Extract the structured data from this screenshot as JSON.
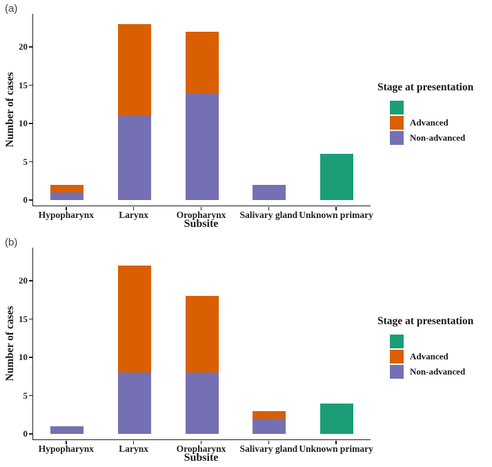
{
  "chart_data": [
    {
      "type": "bar",
      "stacked": true,
      "panel_label": "(a)",
      "xlabel": "Subsite",
      "ylabel": "Number of cases",
      "categories": [
        "Hypopharynx",
        "Larynx",
        "Oropharynx",
        "Salivary gland",
        "Unknown primary"
      ],
      "series": [
        {
          "name": "",
          "color": "#1B9E77",
          "values": [
            0,
            0,
            0,
            0,
            6
          ]
        },
        {
          "name": "Advanced",
          "color": "#D95F02",
          "values": [
            1,
            12,
            8,
            0,
            0
          ]
        },
        {
          "name": "Non-advanced",
          "color": "#7570B3",
          "values": [
            1,
            11,
            14,
            2,
            0
          ]
        }
      ],
      "totals": [
        2,
        23,
        22,
        2,
        6
      ],
      "yticks": [
        0,
        5,
        10,
        15,
        20
      ],
      "ylim": [
        0,
        24.3
      ],
      "grid": false,
      "legend": {
        "title": "Stage at presentation",
        "position": "right"
      }
    },
    {
      "type": "bar",
      "stacked": true,
      "panel_label": "(b)",
      "xlabel": "Subsite",
      "ylabel": "Number of cases",
      "categories": [
        "Hypopharynx",
        "Larynx",
        "Oropharynx",
        "Salivary gland",
        "Unknown primary"
      ],
      "series": [
        {
          "name": "",
          "color": "#1B9E77",
          "values": [
            0,
            0,
            0,
            0,
            4
          ]
        },
        {
          "name": "Advanced",
          "color": "#D95F02",
          "values": [
            0,
            14,
            10,
            1,
            0
          ]
        },
        {
          "name": "Non-advanced",
          "color": "#7570B3",
          "values": [
            1,
            8,
            8,
            2,
            0
          ]
        }
      ],
      "totals": [
        1,
        22,
        18,
        3,
        4
      ],
      "yticks": [
        0,
        5,
        10,
        15,
        20
      ],
      "ylim": [
        0,
        24.3
      ],
      "grid": false,
      "legend": {
        "title": "Stage at presentation",
        "position": "right"
      }
    }
  ]
}
